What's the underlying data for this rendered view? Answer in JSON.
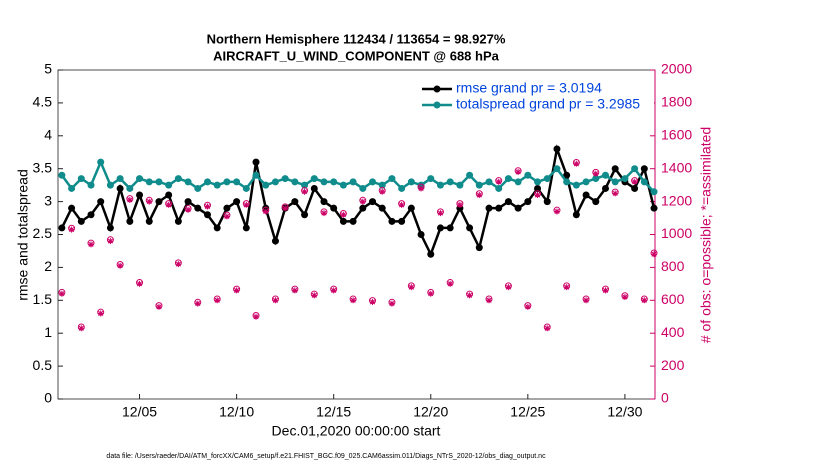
{
  "chart_data": {
    "type": "line",
    "title": "Northern Hemisphere 112434 / 113654 = 98.927%",
    "subtitle": "AIRCRAFT_U_WIND_COMPONENT @ 688 hPa",
    "x_label": "Dec.01,2020 00:00:00 start",
    "y_label": "rmse and totalspread",
    "y2_label": "# of obs: o=possible; *=assimilated",
    "footnote": "data file: /Users/raeder/DAI/ATM_forcXX/CAM6_setup/f.e21.FHIST_BGC.f09_025.CAM6assim.011/Diags_NTrS_2020-12/obs_diag_output.nc",
    "x": [
      1,
      1.5,
      2,
      2.5,
      3,
      3.5,
      4,
      4.5,
      5,
      5.5,
      6,
      6.5,
      7,
      7.5,
      8,
      8.5,
      9,
      9.5,
      10,
      10.5,
      11,
      11.5,
      12,
      12.5,
      13,
      13.5,
      14,
      14.5,
      15,
      15.5,
      16,
      16.5,
      17,
      17.5,
      18,
      18.5,
      19,
      19.5,
      20,
      20.5,
      21,
      21.5,
      22,
      22.5,
      23,
      23.5,
      24,
      24.5,
      25,
      25.5,
      26,
      26.5,
      27,
      27.5,
      28,
      28.5,
      29,
      29.5,
      30,
      30.5,
      31,
      31.5
    ],
    "xlim": [
      0.8,
      31.55
    ],
    "xticks": [
      {
        "value": 5,
        "label": "12/05"
      },
      {
        "value": 10,
        "label": "12/10"
      },
      {
        "value": 15,
        "label": "12/15"
      },
      {
        "value": 20,
        "label": "12/20"
      },
      {
        "value": 25,
        "label": "12/25"
      },
      {
        "value": 30,
        "label": "12/30"
      }
    ],
    "ylim": [
      0,
      5
    ],
    "yticks": [
      0,
      0.5,
      1,
      1.5,
      2,
      2.5,
      3,
      3.5,
      4,
      4.5,
      5
    ],
    "y2lim": [
      0,
      2000
    ],
    "y2ticks": [
      0,
      200,
      400,
      600,
      800,
      1000,
      1200,
      1400,
      1600,
      1800,
      2000
    ],
    "legend": "upper right",
    "series": [
      {
        "name": "rmse grand pr = 3.0194",
        "color": "#000000",
        "marker": "circle",
        "values": [
          2.6,
          2.9,
          2.7,
          2.8,
          3.0,
          2.6,
          3.2,
          2.7,
          3.1,
          2.7,
          3.0,
          3.1,
          2.7,
          3.0,
          2.9,
          2.8,
          2.6,
          2.9,
          3.0,
          2.6,
          3.6,
          2.9,
          2.4,
          2.9,
          3.0,
          2.8,
          3.2,
          3.0,
          2.9,
          2.7,
          2.7,
          2.9,
          3.0,
          2.9,
          2.7,
          2.7,
          2.9,
          2.5,
          2.2,
          2.6,
          2.6,
          2.9,
          2.6,
          2.3,
          2.9,
          2.9,
          3.0,
          2.9,
          3.0,
          3.2,
          3.0,
          3.8,
          3.4,
          2.8,
          3.1,
          3.0,
          3.2,
          3.5,
          3.3,
          3.2,
          3.5,
          2.9
        ]
      },
      {
        "name": "totalspread grand pr = 3.2985",
        "color": "#108c8c",
        "marker": "circle",
        "values": [
          3.4,
          3.2,
          3.35,
          3.25,
          3.6,
          3.25,
          3.35,
          3.2,
          3.35,
          3.3,
          3.3,
          3.25,
          3.35,
          3.3,
          3.2,
          3.3,
          3.25,
          3.3,
          3.3,
          3.2,
          3.4,
          3.25,
          3.3,
          3.35,
          3.3,
          3.25,
          3.35,
          3.3,
          3.3,
          3.25,
          3.3,
          3.2,
          3.3,
          3.25,
          3.35,
          3.2,
          3.3,
          3.25,
          3.35,
          3.25,
          3.3,
          3.25,
          3.4,
          3.25,
          3.3,
          3.2,
          3.35,
          3.3,
          3.4,
          3.3,
          3.35,
          3.5,
          3.3,
          3.25,
          3.3,
          3.35,
          3.4,
          3.3,
          3.35,
          3.5,
          3.3,
          3.15
        ]
      },
      {
        "color": "#cc0066",
        "marker": "ring",
        "axis": "y2",
        "values": [
          660,
          1050,
          450,
          960,
          540,
          980,
          830,
          1230,
          720,
          1220,
          580,
          1200,
          840,
          1170,
          600,
          1190,
          620,
          1130,
          680,
          1200,
          520,
          1160,
          620,
          1180,
          680,
          1280,
          650,
          1150,
          680,
          1140,
          620,
          1220,
          610,
          1280,
          600,
          1200,
          700,
          1300,
          660,
          1150,
          720,
          1200,
          650,
          1260,
          620,
          1340,
          700,
          1400,
          580,
          1260,
          450,
          1160,
          700,
          1450,
          620,
          1390,
          680,
          1270,
          640,
          1340,
          620,
          900
        ]
      },
      {
        "color": "#cc0066",
        "marker": "star",
        "axis": "y2",
        "values": [
          640,
          1030,
          430,
          940,
          520,
          960,
          810,
          1210,
          700,
          1200,
          560,
          1180,
          820,
          1150,
          580,
          1170,
          600,
          1110,
          660,
          1180,
          500,
          1140,
          600,
          1160,
          660,
          1260,
          630,
          1130,
          660,
          1120,
          600,
          1200,
          590,
          1260,
          580,
          1180,
          680,
          1280,
          640,
          1130,
          700,
          1180,
          630,
          1240,
          600,
          1320,
          680,
          1380,
          560,
          1240,
          430,
          1140,
          680,
          1430,
          600,
          1370,
          660,
          1250,
          620,
          1320,
          600,
          880
        ]
      }
    ]
  }
}
